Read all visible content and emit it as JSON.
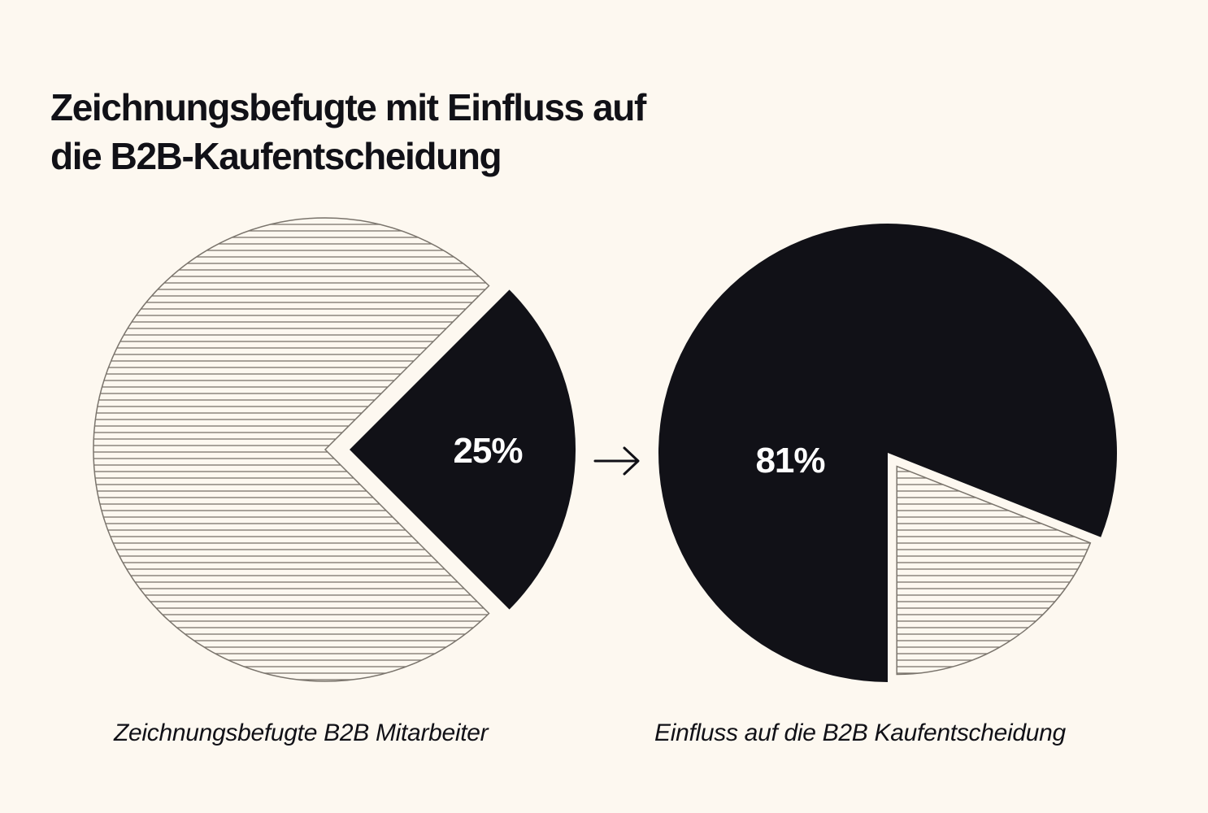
{
  "title_lines": [
    "Zeichnungsbefugte mit Einfluss auf",
    "die B2B-Kaufentscheidung"
  ],
  "colors": {
    "background": "#fdf8f0",
    "dark": "#111117",
    "hatch": "#7a746c"
  },
  "chart_data": [
    {
      "type": "pie",
      "caption": "Zeichnungsbefugte B2B Mitarbeiter",
      "slices": [
        {
          "label": "25%",
          "value": 25,
          "style": "solid-dark",
          "exploded": true
        },
        {
          "label": "",
          "value": 75,
          "style": "hatched"
        }
      ]
    },
    {
      "type": "pie",
      "caption": "Einfluss auf die B2B Kaufentscheidung",
      "slices": [
        {
          "label": "81%",
          "value": 81,
          "style": "solid-dark"
        },
        {
          "label": "",
          "value": 19,
          "style": "hatched",
          "exploded": true
        }
      ]
    }
  ],
  "connector": {
    "icon": "arrow-right-icon"
  }
}
